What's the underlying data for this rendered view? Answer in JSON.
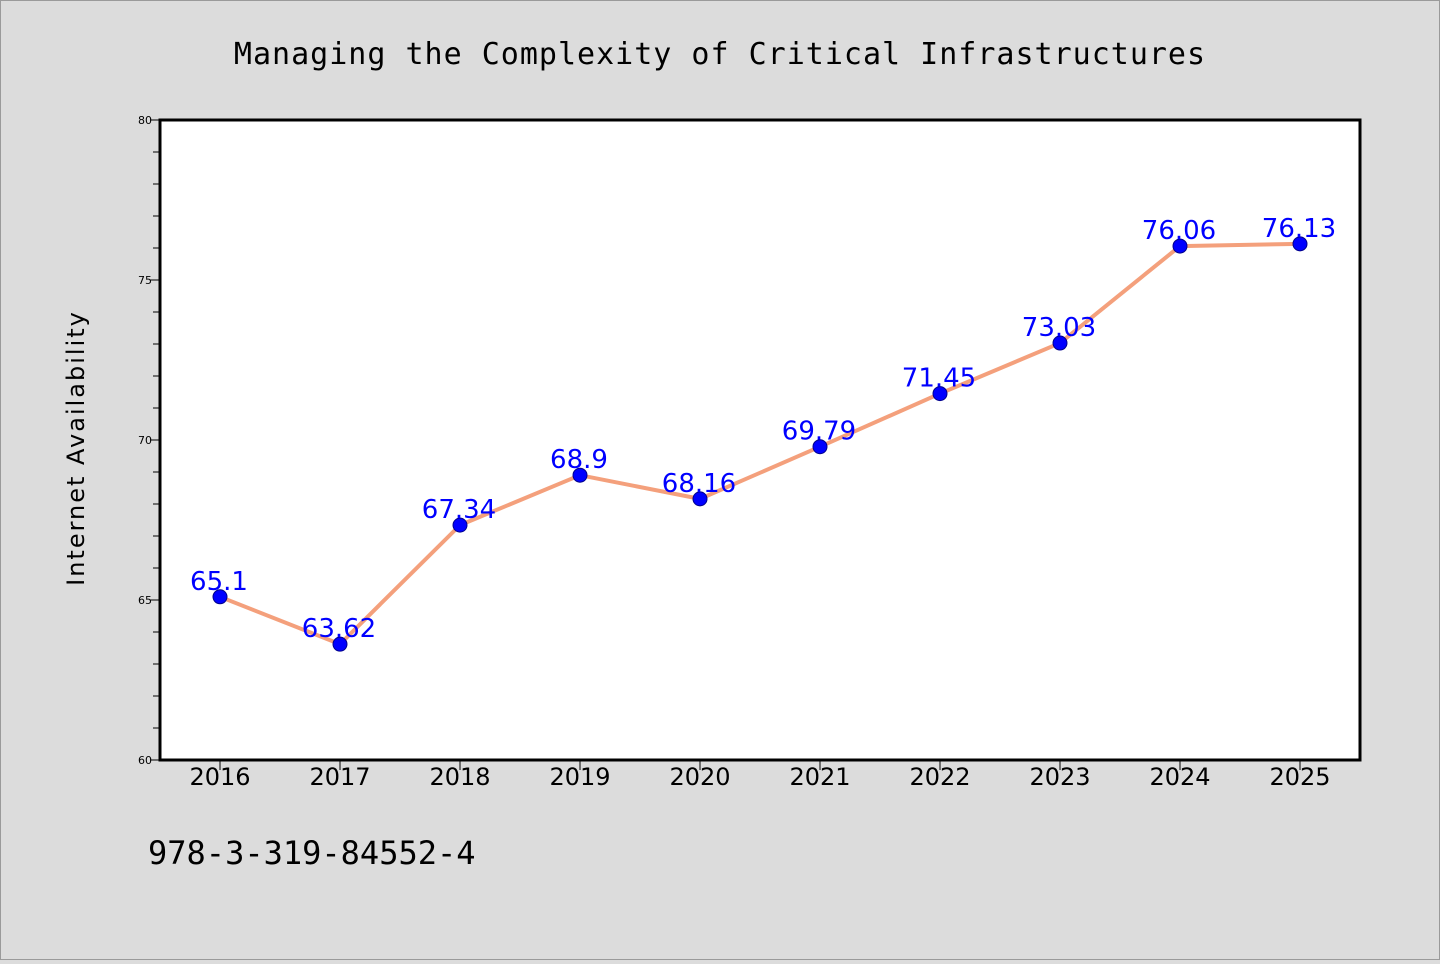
{
  "chart_data": {
    "type": "line",
    "title": "Managing the Complexity of Critical Infrastructures",
    "xlabel": "",
    "ylabel": "Internet Availability",
    "categories": [
      "2016",
      "2017",
      "2018",
      "2019",
      "2020",
      "2021",
      "2022",
      "2023",
      "2024",
      "2025"
    ],
    "series": [
      {
        "values": [
          65.1,
          63.62,
          67.34,
          68.9,
          68.16,
          69.79,
          71.45,
          73.03,
          76.06,
          76.13
        ],
        "data_labels": [
          "65.1",
          "63.62",
          "67.34",
          "68.9",
          "68.16",
          "69.79",
          "71.45",
          "73.03",
          "76.06",
          "76.13"
        ]
      }
    ],
    "ylim": [
      60,
      80
    ],
    "y_ticks": [
      "60",
      "65",
      "70",
      "75",
      "80"
    ],
    "grid": false,
    "legend": "none",
    "colors": {
      "line": "#f4a07c",
      "marker": "#0000ff",
      "data_label": "#0000ff",
      "background": "#dcdcdc",
      "plot_area": "#ffffff"
    }
  },
  "footer_text": "978-3-319-84552-4"
}
